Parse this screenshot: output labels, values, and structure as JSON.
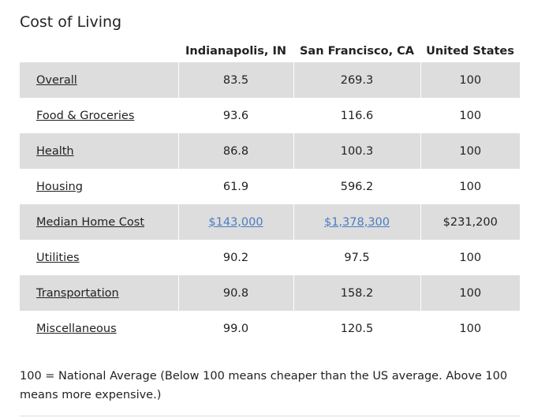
{
  "title": "Cost of Living",
  "headers": [
    "",
    "Indianapolis, IN",
    "San Francisco, CA",
    "United States"
  ],
  "rows": [
    {
      "label": "Overall",
      "c1": "83.5",
      "c2": "269.3",
      "c3": "100"
    },
    {
      "label": "Food & Groceries",
      "c1": "93.6",
      "c2": "116.6",
      "c3": "100"
    },
    {
      "label": "Health",
      "c1": "86.8",
      "c2": "100.3",
      "c3": "100"
    },
    {
      "label": "Housing",
      "c1": "61.9",
      "c2": "596.2",
      "c3": "100"
    },
    {
      "label": "Median Home Cost",
      "c1": "$143,000",
      "c2": "$1,378,300",
      "c3": "$231,200"
    },
    {
      "label": "Utilities",
      "c1": "90.2",
      "c2": "97.5",
      "c3": "100"
    },
    {
      "label": "Transportation",
      "c1": "90.8",
      "c2": "158.2",
      "c3": "100"
    },
    {
      "label": "Miscellaneous",
      "c1": "99.0",
      "c2": "120.5",
      "c3": "100"
    }
  ],
  "footnote": "100 = National Average (Below 100 means cheaper than the US average. Above 100 means more expensive.)"
}
